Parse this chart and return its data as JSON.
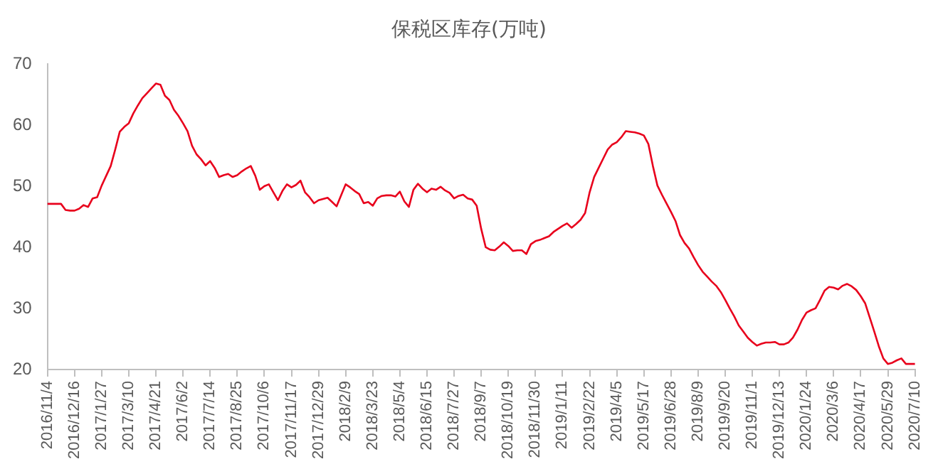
{
  "chart_data": {
    "type": "line",
    "title": "保税区库存(万吨)",
    "categories": [
      "2016/11/4",
      null,
      null,
      null,
      null,
      null,
      "2016/12/16",
      null,
      null,
      null,
      null,
      null,
      "2017/1/27",
      null,
      null,
      null,
      null,
      null,
      "2017/3/10",
      null,
      null,
      null,
      null,
      null,
      "2017/4/21",
      null,
      null,
      null,
      null,
      null,
      "2017/6/2",
      null,
      null,
      null,
      null,
      null,
      "2017/7/14",
      null,
      null,
      null,
      null,
      null,
      "2017/8/25",
      null,
      null,
      null,
      null,
      null,
      "2017/10/6",
      null,
      null,
      null,
      null,
      null,
      "2017/11/17",
      null,
      null,
      null,
      null,
      null,
      "2017/12/29",
      null,
      null,
      null,
      null,
      null,
      "2018/2/9",
      null,
      null,
      null,
      null,
      null,
      "2018/3/23",
      null,
      null,
      null,
      null,
      null,
      "2018/5/4",
      null,
      null,
      null,
      null,
      null,
      "2018/6/15",
      null,
      null,
      null,
      null,
      null,
      "2018/7/27",
      null,
      null,
      null,
      null,
      null,
      "2018/9/7",
      null,
      null,
      null,
      null,
      null,
      "2018/10/19",
      null,
      null,
      null,
      null,
      null,
      "2018/11/30",
      null,
      null,
      null,
      null,
      null,
      "2019/1/11",
      null,
      null,
      null,
      null,
      null,
      "2019/2/22",
      null,
      null,
      null,
      null,
      null,
      "2019/4/5",
      null,
      null,
      null,
      null,
      null,
      "2019/5/17",
      null,
      null,
      null,
      null,
      null,
      "2019/6/28",
      null,
      null,
      null,
      null,
      null,
      "2019/8/9",
      null,
      null,
      null,
      null,
      null,
      "2019/9/20",
      null,
      null,
      null,
      null,
      null,
      "2019/11/1",
      null,
      null,
      null,
      null,
      null,
      "2019/12/13",
      null,
      null,
      null,
      null,
      null,
      "2020/1/24",
      null,
      null,
      null,
      null,
      null,
      "2020/3/6",
      null,
      null,
      null,
      null,
      null,
      "2020/4/17",
      null,
      null,
      null,
      null,
      null,
      "2020/5/29",
      null,
      null,
      null,
      null,
      null,
      "2020/7/10"
    ],
    "values": [
      47.1,
      47.1,
      47.1,
      47.1,
      46.1,
      46.0,
      46.0,
      46.3,
      46.9,
      46.6,
      48.0,
      48.2,
      50.1,
      51.7,
      53.3,
      56.0,
      58.9,
      59.7,
      60.3,
      61.9,
      63.2,
      64.4,
      65.2,
      66.0,
      66.8,
      66.6,
      64.8,
      64.1,
      62.5,
      61.5,
      60.3,
      59.0,
      56.6,
      55.2,
      54.4,
      53.4,
      54.1,
      53.0,
      51.5,
      51.8,
      52.0,
      51.5,
      51.8,
      52.4,
      52.9,
      53.3,
      51.7,
      49.4,
      50.0,
      50.3,
      49.0,
      47.7,
      49.2,
      50.3,
      49.8,
      50.2,
      50.9,
      49.0,
      48.2,
      47.2,
      47.7,
      47.9,
      48.1,
      47.4,
      46.7,
      48.5,
      50.3,
      49.8,
      49.2,
      48.7,
      47.2,
      47.4,
      46.8,
      48.0,
      48.4,
      48.5,
      48.5,
      48.3,
      49.1,
      47.5,
      46.6,
      49.4,
      50.4,
      49.6,
      49.0,
      49.6,
      49.4,
      49.9,
      49.3,
      48.9,
      48.0,
      48.4,
      48.6,
      48.0,
      47.8,
      46.8,
      43.0,
      40.0,
      39.6,
      39.5,
      40.1,
      40.8,
      40.2,
      39.4,
      39.5,
      39.5,
      38.9,
      40.5,
      41.0,
      41.2,
      41.5,
      41.8,
      42.5,
      43.0,
      43.5,
      43.9,
      43.2,
      43.8,
      44.5,
      45.6,
      49.0,
      51.5,
      53.0,
      54.5,
      56.0,
      56.8,
      57.2,
      58.0,
      59.0,
      58.9,
      58.8,
      58.6,
      58.3,
      56.9,
      53.3,
      50.1,
      48.6,
      47.2,
      45.8,
      44.3,
      42.0,
      40.7,
      39.8,
      38.4,
      37.1,
      36.0,
      35.2,
      34.4,
      33.7,
      32.7,
      31.4,
      30.0,
      28.7,
      27.2,
      26.2,
      25.2,
      24.5,
      23.9,
      24.2,
      24.4,
      24.4,
      24.5,
      24.1,
      24.1,
      24.4,
      25.2,
      26.5,
      28.1,
      29.3,
      29.7,
      30.0,
      31.4,
      32.9,
      33.5,
      33.4,
      33.1,
      33.7,
      34.0,
      33.6,
      33.0,
      32.0,
      30.8,
      28.5,
      26.2,
      23.8,
      21.8,
      20.9,
      21.1,
      21.5,
      21.8,
      20.9,
      20.9,
      20.9
    ],
    "color": "#e8001c",
    "ylim": [
      20,
      70
    ],
    "yticks": [
      20,
      30,
      40,
      50,
      60,
      70
    ],
    "marker": "none"
  }
}
